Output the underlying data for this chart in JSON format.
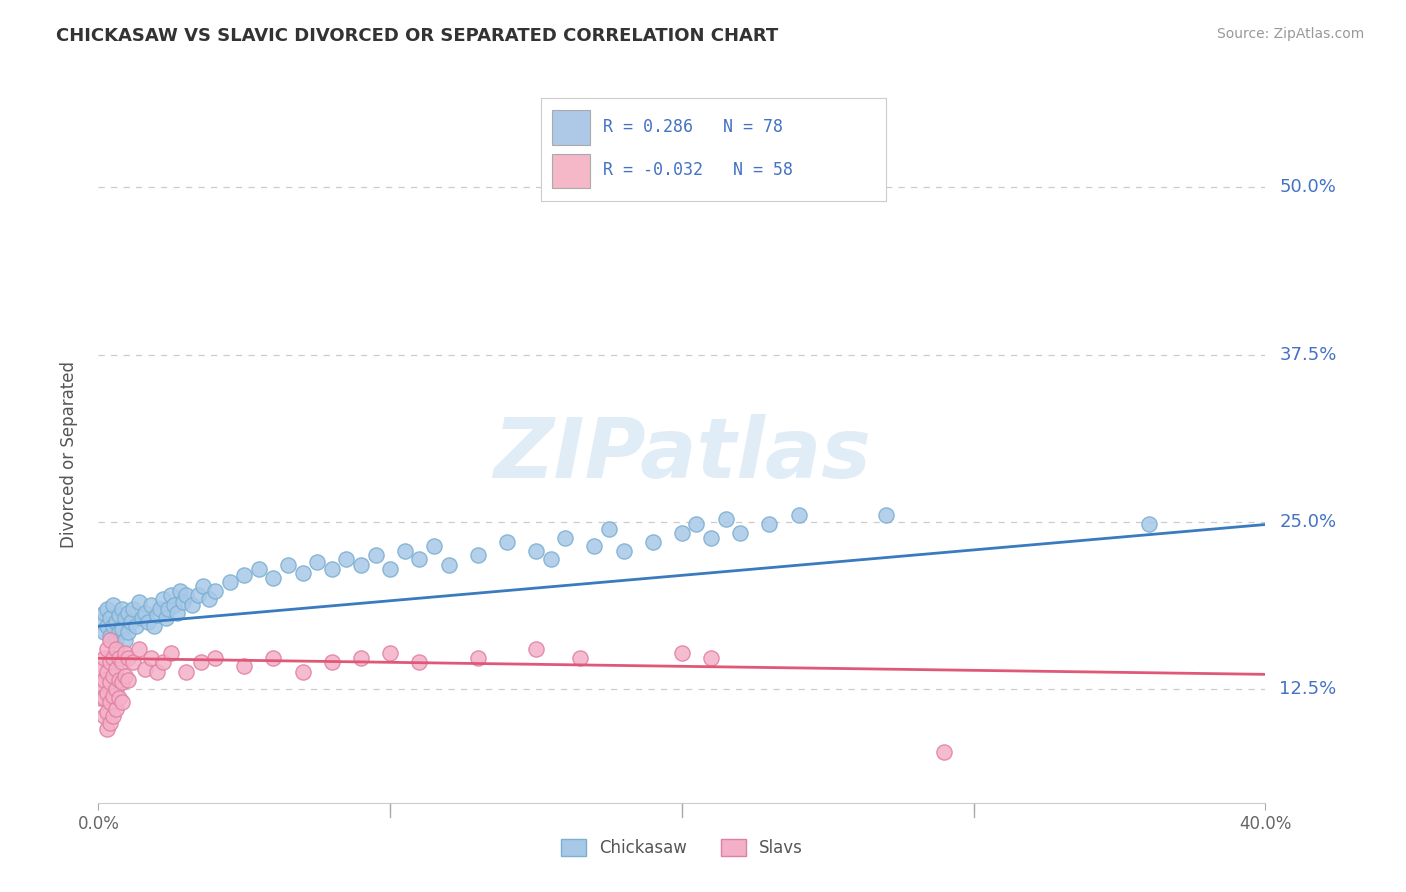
{
  "title": "CHICKASAW VS SLAVIC DIVORCED OR SEPARATED CORRELATION CHART",
  "source_text": "Source: ZipAtlas.com",
  "ylabel": "Divorced or Separated",
  "yticks": [
    0.125,
    0.25,
    0.375,
    0.5
  ],
  "ytick_labels": [
    "12.5%",
    "25.0%",
    "37.5%",
    "50.0%"
  ],
  "xmin": 0.0,
  "xmax": 0.4,
  "ymin": 0.04,
  "ymax": 0.56,
  "chickasaw_dot_color": "#a8c8e8",
  "chickasaw_dot_edge": "#7aafd0",
  "slavic_dot_color": "#f4b0c8",
  "slavic_dot_edge": "#e080a0",
  "chickasaw_line_color": "#3a7abf",
  "slavic_line_color": "#e05878",
  "watermark": "ZIPatlas",
  "legend_labels": [
    "Chickasaw",
    "Slavs"
  ],
  "legend_box_colors": [
    "#aec8e8",
    "#f4b8c8"
  ],
  "chickasaw_scatter": [
    [
      0.001,
      0.175
    ],
    [
      0.002,
      0.182
    ],
    [
      0.002,
      0.168
    ],
    [
      0.003,
      0.185
    ],
    [
      0.003,
      0.172
    ],
    [
      0.004,
      0.178
    ],
    [
      0.004,
      0.165
    ],
    [
      0.005,
      0.188
    ],
    [
      0.005,
      0.172
    ],
    [
      0.006,
      0.175
    ],
    [
      0.006,
      0.162
    ],
    [
      0.007,
      0.18
    ],
    [
      0.007,
      0.168
    ],
    [
      0.008,
      0.185
    ],
    [
      0.008,
      0.17
    ],
    [
      0.009,
      0.178
    ],
    [
      0.009,
      0.162
    ],
    [
      0.01,
      0.182
    ],
    [
      0.01,
      0.168
    ],
    [
      0.011,
      0.175
    ],
    [
      0.012,
      0.185
    ],
    [
      0.013,
      0.172
    ],
    [
      0.014,
      0.19
    ],
    [
      0.015,
      0.178
    ],
    [
      0.016,
      0.182
    ],
    [
      0.017,
      0.175
    ],
    [
      0.018,
      0.188
    ],
    [
      0.019,
      0.172
    ],
    [
      0.02,
      0.18
    ],
    [
      0.021,
      0.185
    ],
    [
      0.022,
      0.192
    ],
    [
      0.023,
      0.178
    ],
    [
      0.024,
      0.185
    ],
    [
      0.025,
      0.195
    ],
    [
      0.026,
      0.188
    ],
    [
      0.027,
      0.182
    ],
    [
      0.028,
      0.198
    ],
    [
      0.029,
      0.19
    ],
    [
      0.03,
      0.195
    ],
    [
      0.032,
      0.188
    ],
    [
      0.034,
      0.195
    ],
    [
      0.036,
      0.202
    ],
    [
      0.038,
      0.192
    ],
    [
      0.04,
      0.198
    ],
    [
      0.045,
      0.205
    ],
    [
      0.05,
      0.21
    ],
    [
      0.055,
      0.215
    ],
    [
      0.06,
      0.208
    ],
    [
      0.065,
      0.218
    ],
    [
      0.07,
      0.212
    ],
    [
      0.075,
      0.22
    ],
    [
      0.08,
      0.215
    ],
    [
      0.085,
      0.222
    ],
    [
      0.09,
      0.218
    ],
    [
      0.095,
      0.225
    ],
    [
      0.1,
      0.215
    ],
    [
      0.105,
      0.228
    ],
    [
      0.11,
      0.222
    ],
    [
      0.115,
      0.232
    ],
    [
      0.12,
      0.218
    ],
    [
      0.13,
      0.225
    ],
    [
      0.14,
      0.235
    ],
    [
      0.15,
      0.228
    ],
    [
      0.155,
      0.222
    ],
    [
      0.16,
      0.238
    ],
    [
      0.17,
      0.232
    ],
    [
      0.175,
      0.245
    ],
    [
      0.18,
      0.228
    ],
    [
      0.19,
      0.235
    ],
    [
      0.2,
      0.242
    ],
    [
      0.205,
      0.248
    ],
    [
      0.21,
      0.238
    ],
    [
      0.215,
      0.252
    ],
    [
      0.22,
      0.242
    ],
    [
      0.23,
      0.248
    ],
    [
      0.24,
      0.255
    ],
    [
      0.27,
      0.255
    ],
    [
      0.36,
      0.248
    ]
  ],
  "slavic_scatter": [
    [
      0.001,
      0.14
    ],
    [
      0.001,
      0.128
    ],
    [
      0.001,
      0.118
    ],
    [
      0.002,
      0.148
    ],
    [
      0.002,
      0.132
    ],
    [
      0.002,
      0.118
    ],
    [
      0.002,
      0.105
    ],
    [
      0.003,
      0.155
    ],
    [
      0.003,
      0.138
    ],
    [
      0.003,
      0.122
    ],
    [
      0.003,
      0.108
    ],
    [
      0.003,
      0.095
    ],
    [
      0.004,
      0.162
    ],
    [
      0.004,
      0.145
    ],
    [
      0.004,
      0.13
    ],
    [
      0.004,
      0.115
    ],
    [
      0.004,
      0.1
    ],
    [
      0.005,
      0.148
    ],
    [
      0.005,
      0.135
    ],
    [
      0.005,
      0.12
    ],
    [
      0.005,
      0.105
    ],
    [
      0.006,
      0.155
    ],
    [
      0.006,
      0.14
    ],
    [
      0.006,
      0.125
    ],
    [
      0.006,
      0.11
    ],
    [
      0.007,
      0.148
    ],
    [
      0.007,
      0.132
    ],
    [
      0.007,
      0.118
    ],
    [
      0.008,
      0.145
    ],
    [
      0.008,
      0.13
    ],
    [
      0.008,
      0.115
    ],
    [
      0.009,
      0.152
    ],
    [
      0.009,
      0.135
    ],
    [
      0.01,
      0.148
    ],
    [
      0.01,
      0.132
    ],
    [
      0.012,
      0.145
    ],
    [
      0.014,
      0.155
    ],
    [
      0.016,
      0.14
    ],
    [
      0.018,
      0.148
    ],
    [
      0.02,
      0.138
    ],
    [
      0.022,
      0.145
    ],
    [
      0.025,
      0.152
    ],
    [
      0.03,
      0.138
    ],
    [
      0.035,
      0.145
    ],
    [
      0.04,
      0.148
    ],
    [
      0.05,
      0.142
    ],
    [
      0.06,
      0.148
    ],
    [
      0.07,
      0.138
    ],
    [
      0.08,
      0.145
    ],
    [
      0.09,
      0.148
    ],
    [
      0.1,
      0.152
    ],
    [
      0.11,
      0.145
    ],
    [
      0.13,
      0.148
    ],
    [
      0.15,
      0.155
    ],
    [
      0.165,
      0.148
    ],
    [
      0.2,
      0.152
    ],
    [
      0.21,
      0.148
    ],
    [
      0.29,
      0.078
    ]
  ],
  "chickasaw_line": [
    [
      0.0,
      0.172
    ],
    [
      0.4,
      0.248
    ]
  ],
  "slavic_line": [
    [
      0.0,
      0.148
    ],
    [
      0.4,
      0.136
    ]
  ]
}
